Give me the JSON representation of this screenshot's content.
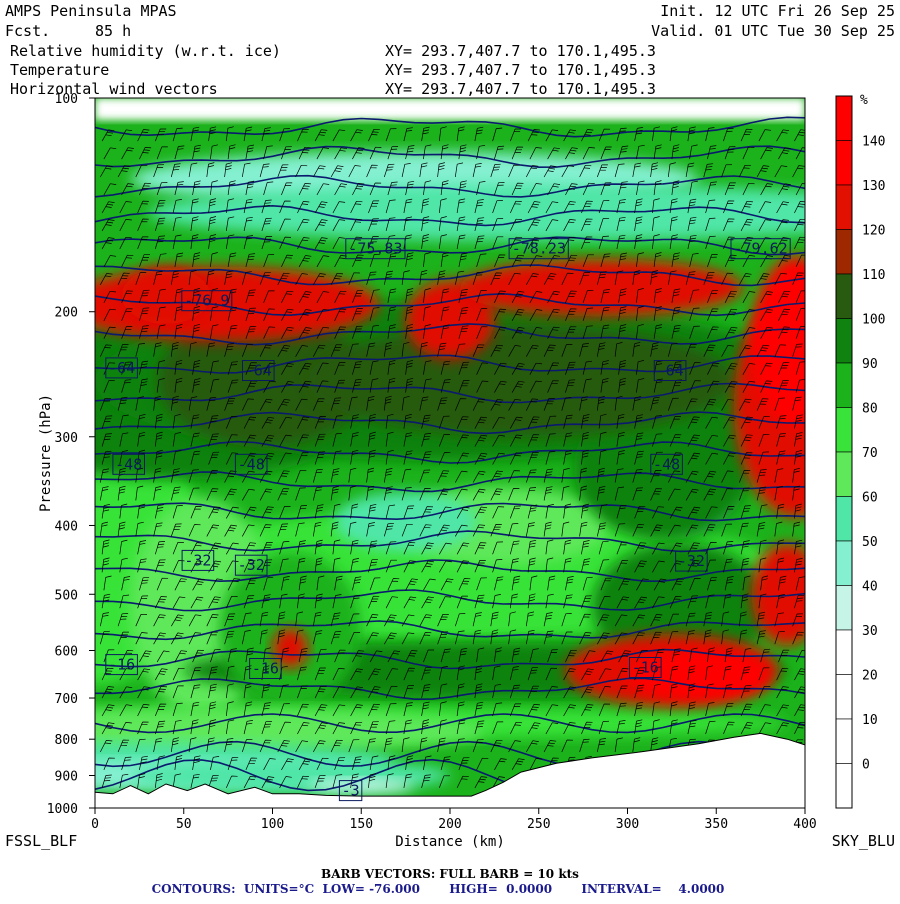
{
  "header": {
    "model": "AMPS Peninsula MPAS",
    "fcst_label": "Fcst.",
    "fcst_value": "85 h",
    "init": "Init. 12 UTC Fri 26 Sep 25",
    "valid": "Valid. 01 UTC Tue 30 Sep 25",
    "fields": [
      {
        "name": "Relative humidity (w.r.t. ice)",
        "xy": "XY= 293.7,407.7 to 170.1,495.3",
        "color": "#000000"
      },
      {
        "name": "Temperature",
        "xy": "XY= 293.7,407.7 to 170.1,495.3",
        "color": "#1a1a8c"
      },
      {
        "name": "Horizontal wind vectors",
        "xy": "XY= 293.7,407.7 to 170.1,495.3",
        "color": "#000000"
      }
    ]
  },
  "endpoints": {
    "left": "FSSL_BLF",
    "right": "SKY_BLU"
  },
  "footer": {
    "barb": "BARB VECTORS:  FULL BARB = 10 kts",
    "contours": "CONTOURS:  UNITS=°C  LOW= -76.000       HIGH=  0.0000       INTERVAL=    4.0000"
  },
  "chart_data": {
    "type": "heatmap",
    "xlabel": "Distance (km)",
    "ylabel": "Pressure (hPa)",
    "xlim": [
      0,
      400
    ],
    "ylim": [
      1000,
      100
    ],
    "yscale": "log",
    "xticks": [
      0,
      50,
      100,
      150,
      200,
      250,
      300,
      350,
      400
    ],
    "yticks": [
      100,
      200,
      300,
      400,
      500,
      600,
      700,
      800,
      900,
      1000
    ],
    "colorbar": {
      "unit": "%",
      "ticks": [
        0,
        10,
        20,
        30,
        40,
        50,
        60,
        70,
        80,
        90,
        100,
        110,
        120,
        130,
        140
      ],
      "bins": [
        {
          "from": -10,
          "to": 0,
          "color": "#ffffff"
        },
        {
          "from": 0,
          "to": 10,
          "color": "#ffffff"
        },
        {
          "from": 10,
          "to": 20,
          "color": "#ffffff"
        },
        {
          "from": 20,
          "to": 30,
          "color": "#ffffff"
        },
        {
          "from": 30,
          "to": 40,
          "color": "#c6f5e8"
        },
        {
          "from": 40,
          "to": 50,
          "color": "#84f0d0"
        },
        {
          "from": 50,
          "to": 60,
          "color": "#4fe6a8"
        },
        {
          "from": 60,
          "to": 70,
          "color": "#5ee85a"
        },
        {
          "from": 70,
          "to": 80,
          "color": "#39e339"
        },
        {
          "from": 80,
          "to": 90,
          "color": "#1bb21b"
        },
        {
          "from": 90,
          "to": 100,
          "color": "#0f820f"
        },
        {
          "from": 100,
          "to": 110,
          "color": "#285a0f"
        },
        {
          "from": 110,
          "to": 120,
          "color": "#9e2800"
        },
        {
          "from": 120,
          "to": 130,
          "color": "#e11000"
        },
        {
          "from": 130,
          "to": 140,
          "color": "#ff0000"
        },
        {
          "from": 140,
          "to": 150,
          "color": "#ff0000"
        }
      ]
    },
    "isotherm_labels": [
      {
        "text": "-76.9",
        "x": 63,
        "p": 193
      },
      {
        "text": "-75.83",
        "x": 158,
        "p": 163
      },
      {
        "text": "-78.23",
        "x": 250,
        "p": 163
      },
      {
        "text": "-79.62",
        "x": 375,
        "p": 163
      },
      {
        "text": "-64",
        "x": 15,
        "p": 240
      },
      {
        "text": "-64",
        "x": 92,
        "p": 242
      },
      {
        "text": "-64",
        "x": 324,
        "p": 242
      },
      {
        "text": "-48",
        "x": 19,
        "p": 328
      },
      {
        "text": "-48",
        "x": 88,
        "p": 328
      },
      {
        "text": "-48",
        "x": 322,
        "p": 328
      },
      {
        "text": "-32",
        "x": 58,
        "p": 448
      },
      {
        "text": "-32",
        "x": 88,
        "p": 455
      },
      {
        "text": "-32",
        "x": 336,
        "p": 449
      },
      {
        "text": "-16",
        "x": 15,
        "p": 628
      },
      {
        "text": "-16",
        "x": 96,
        "p": 636
      },
      {
        "text": "-16",
        "x": 310,
        "p": 634
      },
      {
        "text": "-3",
        "x": 144,
        "p": 945
      }
    ],
    "terrain": [
      {
        "x": 0,
        "p": 950
      },
      {
        "x": 10,
        "p": 955
      },
      {
        "x": 20,
        "p": 930
      },
      {
        "x": 30,
        "p": 955
      },
      {
        "x": 40,
        "p": 925
      },
      {
        "x": 52,
        "p": 945
      },
      {
        "x": 62,
        "p": 925
      },
      {
        "x": 75,
        "p": 955
      },
      {
        "x": 90,
        "p": 935
      },
      {
        "x": 100,
        "p": 955
      },
      {
        "x": 115,
        "p": 955
      },
      {
        "x": 130,
        "p": 960
      },
      {
        "x": 150,
        "p": 962
      },
      {
        "x": 175,
        "p": 962
      },
      {
        "x": 212,
        "p": 962
      },
      {
        "x": 220,
        "p": 945
      },
      {
        "x": 230,
        "p": 920
      },
      {
        "x": 240,
        "p": 890
      },
      {
        "x": 260,
        "p": 865
      },
      {
        "x": 280,
        "p": 850
      },
      {
        "x": 310,
        "p": 832
      },
      {
        "x": 340,
        "p": 812
      },
      {
        "x": 360,
        "p": 795
      },
      {
        "x": 375,
        "p": 785
      },
      {
        "x": 390,
        "p": 800
      },
      {
        "x": 400,
        "p": 815
      }
    ]
  }
}
